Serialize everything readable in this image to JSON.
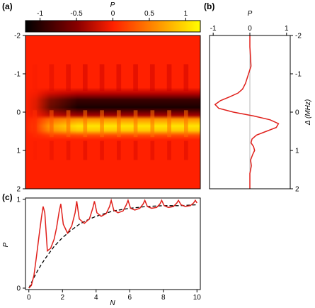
{
  "panels": {
    "a": {
      "label": "(a)",
      "colorbar": {
        "title": "P",
        "ticks": [
          "-1",
          "-0.5",
          "0",
          "0.5",
          "1"
        ],
        "tick_values": [
          -1,
          -0.5,
          0,
          0.5,
          1
        ],
        "range": [
          -1.2,
          1.2
        ],
        "colormap": "hot (black-red-yellow)"
      }
    },
    "b": {
      "label": "(b)"
    },
    "c": {
      "label": "(c)"
    }
  },
  "colors": {
    "curve": "#e0201b",
    "dashed": "#000000",
    "cmap_low": "#000000",
    "cmap_mid": "#ff2000",
    "cmap_high": "#ffff00"
  },
  "chart_data": [
    {
      "id": "a",
      "type": "heatmap",
      "title": "",
      "xlabel": "",
      "ylabel": "",
      "x_ticks": [],
      "y_ticks": [
        "-2",
        "-1",
        "0",
        "1",
        "2"
      ],
      "y_tick_values": [
        -2,
        -1,
        0,
        1,
        2
      ],
      "ylim": [
        -2,
        2
      ],
      "y_inverted": true,
      "z_label": "P",
      "zlim": [
        -1.2,
        1.2
      ],
      "description_values": {
        "dark_band_center": -0.2,
        "bright_band_center": 0.35,
        "stripe_count": 10
      }
    },
    {
      "id": "b",
      "type": "line",
      "title": "",
      "xlabel": "P",
      "ylabel": "Δ (MHz)",
      "x_ticks": [
        "-1",
        "0",
        "1"
      ],
      "x_tick_values": [
        -1,
        0,
        1
      ],
      "xlim": [
        -1.1,
        1.1
      ],
      "y_ticks": [
        "-2",
        "-1",
        "0",
        "1",
        "2"
      ],
      "y_tick_values": [
        -2,
        -1,
        0,
        1,
        2
      ],
      "ylim": [
        -2,
        2
      ],
      "y_inverted": true,
      "series": [
        {
          "delta": [
            -2.0,
            -1.7,
            -1.4,
            -1.2,
            -1.05,
            -0.9,
            -0.75,
            -0.6,
            -0.5,
            -0.4,
            -0.3,
            -0.2,
            -0.1,
            0.0,
            0.1,
            0.2,
            0.3,
            0.4,
            0.5,
            0.6,
            0.7,
            0.8,
            0.9,
            1.0,
            1.1,
            1.25,
            1.4,
            1.6,
            1.8,
            2.0
          ],
          "P": [
            0.0,
            0.0,
            0.02,
            0.03,
            -0.02,
            -0.07,
            -0.12,
            -0.2,
            -0.32,
            -0.55,
            -0.8,
            -0.95,
            -0.85,
            -0.45,
            0.1,
            0.55,
            0.78,
            0.72,
            0.45,
            0.18,
            0.06,
            0.03,
            0.1,
            0.13,
            0.08,
            0.02,
            0.04,
            0.0,
            0.0,
            0.0
          ]
        }
      ]
    },
    {
      "id": "c",
      "type": "line",
      "title": "",
      "xlabel": "N",
      "ylabel": "P",
      "x_ticks": [
        "0",
        "2",
        "4",
        "6",
        "8",
        "10"
      ],
      "x_tick_values": [
        0,
        2,
        4,
        6,
        8,
        10
      ],
      "xlim": [
        -0.2,
        10.2
      ],
      "y_ticks": [
        "0",
        "1"
      ],
      "y_tick_values": [
        0,
        1
      ],
      "ylim": [
        0,
        1
      ],
      "series": [
        {
          "style": "solid",
          "x": [
            0.0,
            0.15,
            0.3,
            0.45,
            0.6,
            0.75,
            0.85,
            0.95,
            1.1,
            1.3,
            1.5,
            1.65,
            1.8,
            1.9,
            2.05,
            2.3,
            2.55,
            2.75,
            2.85,
            3.0,
            3.3,
            3.6,
            3.8,
            3.9,
            4.05,
            4.3,
            4.6,
            4.8,
            4.9,
            5.05,
            5.3,
            5.6,
            5.8,
            5.9,
            6.05,
            6.3,
            6.6,
            6.8,
            6.9,
            7.05,
            7.3,
            7.6,
            7.8,
            7.9,
            8.05,
            8.3,
            8.6,
            8.8,
            8.9,
            9.05,
            9.3,
            9.6,
            9.8,
            9.9,
            10.0
          ],
          "y": [
            0.0,
            0.03,
            0.14,
            0.35,
            0.58,
            0.8,
            0.92,
            0.85,
            0.42,
            0.45,
            0.55,
            0.68,
            0.86,
            0.95,
            0.72,
            0.62,
            0.7,
            0.85,
            0.98,
            0.78,
            0.73,
            0.78,
            0.9,
            0.98,
            0.85,
            0.81,
            0.84,
            0.92,
            0.99,
            0.88,
            0.85,
            0.87,
            0.94,
            0.99,
            0.9,
            0.88,
            0.9,
            0.95,
            0.99,
            0.92,
            0.9,
            0.91,
            0.95,
            0.99,
            0.93,
            0.91,
            0.92,
            0.96,
            0.99,
            0.94,
            0.92,
            0.93,
            0.96,
            0.99,
            0.96
          ]
        },
        {
          "style": "dashed",
          "x": [
            0.0,
            0.25,
            0.5,
            0.75,
            1.0,
            1.5,
            2.0,
            2.5,
            3.0,
            3.5,
            4.0,
            5.0,
            6.0,
            7.0,
            8.0,
            9.0,
            10.0
          ],
          "y": [
            0.0,
            0.1,
            0.19,
            0.27,
            0.34,
            0.47,
            0.57,
            0.65,
            0.72,
            0.77,
            0.81,
            0.87,
            0.9,
            0.92,
            0.93,
            0.93,
            0.94
          ]
        }
      ]
    }
  ]
}
